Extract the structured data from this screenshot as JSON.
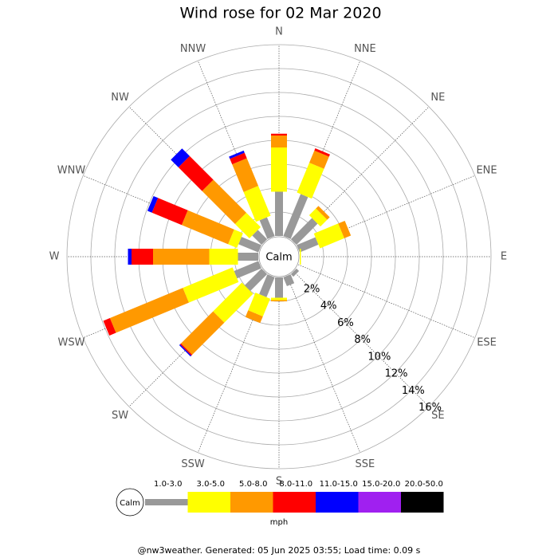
{
  "chart_data": {
    "type": "windrose",
    "title": "Wind rose for 02 Mar 2020",
    "directions": [
      "N",
      "NNE",
      "NE",
      "ENE",
      "E",
      "ESE",
      "SE",
      "SSE",
      "S",
      "SSW",
      "SW",
      "WSW",
      "W",
      "WNW",
      "NW",
      "NNW"
    ],
    "center_label": "Calm",
    "rlim": [
      0,
      16
    ],
    "rticks": [
      {
        "value": 2,
        "label": "2%"
      },
      {
        "value": 4,
        "label": "4%"
      },
      {
        "value": 6,
        "label": "6%"
      },
      {
        "value": 8,
        "label": "8%"
      },
      {
        "value": 10,
        "label": "10%"
      },
      {
        "value": 12,
        "label": "12%"
      },
      {
        "value": 14,
        "label": "14%"
      },
      {
        "value": 16,
        "label": "16%"
      }
    ],
    "series": [
      {
        "name": "1.0-3.0",
        "color": "#999999",
        "values": [
          3.7,
          3.8,
          2.5,
          1.7,
          0,
          0,
          0.3,
          0.8,
          1.7,
          1.8,
          2.0,
          2.2,
          1.7,
          1.8,
          1.1,
          1.7
        ]
      },
      {
        "name": "3.0-5.0",
        "color": "#ffff00",
        "values": [
          3.7,
          2.7,
          0.8,
          2.2,
          0.1,
          0,
          0,
          0,
          0.2,
          1.6,
          3.4,
          4.5,
          2.4,
          0.8,
          1.7,
          2.7
        ]
      },
      {
        "name": "5.0-8.0",
        "color": "#ff9900",
        "values": [
          1.0,
          1.1,
          0.3,
          0.6,
          0,
          0,
          0,
          0,
          0.1,
          0.6,
          3.8,
          6.6,
          4.7,
          4.2,
          3.9,
          2.5
        ]
      },
      {
        "name": "8.0-11.0",
        "color": "#ff0000",
        "values": [
          0.15,
          0.2,
          0,
          0,
          0,
          0,
          0,
          0,
          0,
          0,
          0.1,
          0.6,
          1.8,
          2.7,
          2.8,
          0.5
        ]
      },
      {
        "name": "11.0-15.0",
        "color": "#0000ff",
        "values": [
          0,
          0,
          0,
          0,
          0,
          0,
          0,
          0,
          0,
          0,
          0.1,
          0,
          0.3,
          0.4,
          0.9,
          0.2
        ]
      },
      {
        "name": "15.0-20.0",
        "color": "#a020f0",
        "values": [
          0,
          0,
          0,
          0,
          0,
          0,
          0,
          0,
          0,
          0,
          0,
          0,
          0,
          0,
          0,
          0
        ]
      },
      {
        "name": "20.0-50.0",
        "color": "#000000",
        "values": [
          0,
          0,
          0,
          0,
          0,
          0,
          0,
          0,
          0,
          0,
          0,
          0,
          0,
          0,
          0,
          0
        ]
      }
    ],
    "legend_unit": "mph",
    "footer": "@nw3weather. Generated: 05 Jun 2025 03:55; Load time: 0.09 s"
  }
}
